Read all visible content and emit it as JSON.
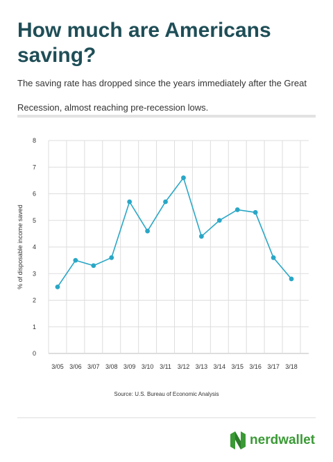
{
  "title": "How much are Americans saving?",
  "subtitle": "The saving rate has dropped since the years immediately after the Great Recession, almost reaching pre-recession lows.",
  "source": "Source: U.S. Bureau of Economic Analysis",
  "brand": {
    "name": "nerdwallet",
    "logo_icon": "nerdwallet-n-logo-icon",
    "color": "#3a9a35"
  },
  "chart_data": {
    "type": "line",
    "ylabel": "% of disposable income saved",
    "ylim": [
      0,
      8
    ],
    "yticks": [
      0,
      1,
      2,
      3,
      4,
      5,
      6,
      7,
      8
    ],
    "categories": [
      "3/05",
      "3/06",
      "3/07",
      "3/08",
      "3/09",
      "3/10",
      "3/11",
      "3/12",
      "3/13",
      "3/14",
      "3/15",
      "3/16",
      "3/17",
      "3/18"
    ],
    "values": [
      2.5,
      3.5,
      3.3,
      3.6,
      5.7,
      4.6,
      5.7,
      6.6,
      4.4,
      5.0,
      5.4,
      5.3,
      3.6,
      2.8
    ],
    "grid": true,
    "line_color": "#2aa7c6"
  }
}
